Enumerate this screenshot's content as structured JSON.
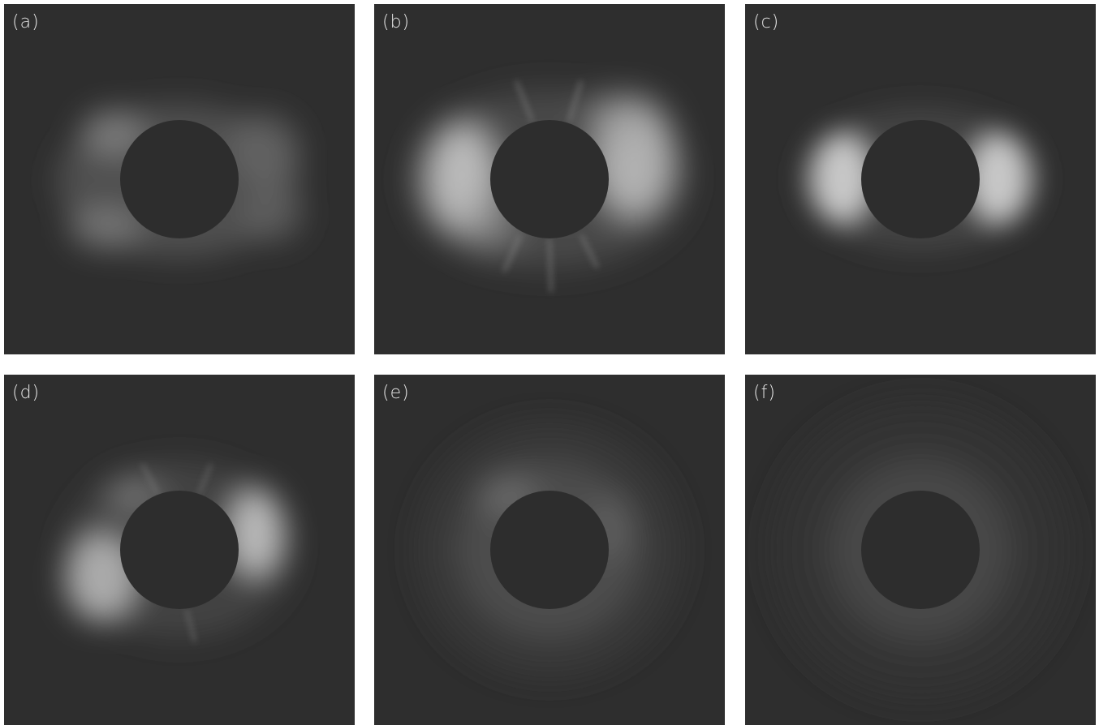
{
  "panels": [
    {
      "id": "a",
      "label": "(a)"
    },
    {
      "id": "b",
      "label": "(b)"
    },
    {
      "id": "c",
      "label": "(c)"
    },
    {
      "id": "d",
      "label": "(d)"
    },
    {
      "id": "e",
      "label": "(e)"
    },
    {
      "id": "f",
      "label": "(f)"
    }
  ],
  "colors": {
    "background": "#2e2e2e",
    "occulting_disk": "#2d2d2d",
    "corona": "#e8e8e8",
    "label": "#e6e6e6"
  }
}
